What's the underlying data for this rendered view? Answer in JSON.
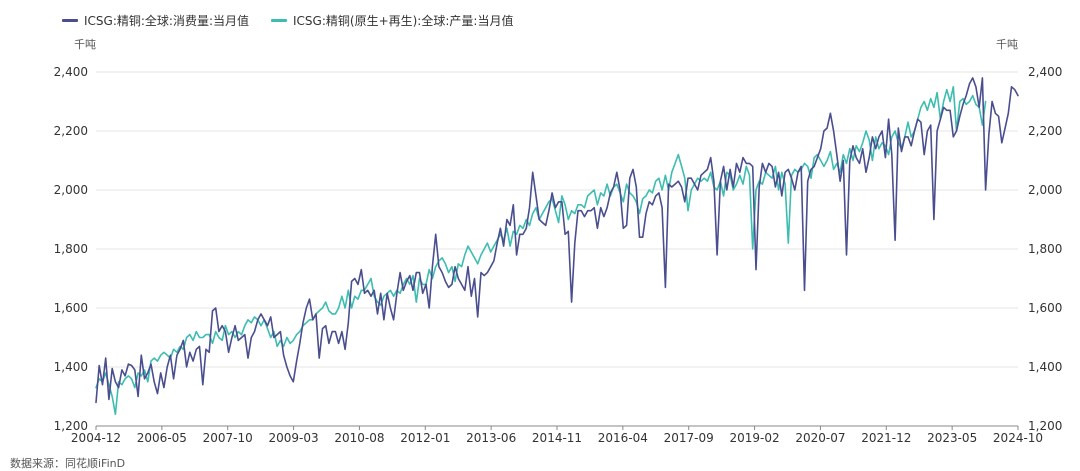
{
  "chart_data": {
    "type": "line",
    "legend_position": "top-left",
    "grid": true,
    "y_unit_left": "千吨",
    "y_unit_right": "千吨",
    "ylim": [
      1200,
      2400
    ],
    "yticks": [
      "1,200",
      "1,400",
      "1,600",
      "1,800",
      "2,000",
      "2,200",
      "2,400"
    ],
    "xlim": [
      "2004-12",
      "2024-10"
    ],
    "xticks": [
      "2004-12",
      "2006-05",
      "2007-10",
      "2009-03",
      "2010-08",
      "2012-01",
      "2013-06",
      "2014-11",
      "2016-04",
      "2017-09",
      "2019-02",
      "2020-07",
      "2021-12",
      "2023-05",
      "2024-10"
    ],
    "series": [
      {
        "name": "ICSG:精铜:全球:消费量:当月值",
        "color": "#4a4e8f",
        "values": [
          1280,
          1405,
          1340,
          1430,
          1290,
          1395,
          1350,
          1330,
          1390,
          1370,
          1410,
          1405,
          1390,
          1300,
          1440,
          1360,
          1380,
          1410,
          1350,
          1310,
          1380,
          1330,
          1400,
          1440,
          1360,
          1440,
          1460,
          1490,
          1400,
          1450,
          1420,
          1460,
          1470,
          1340,
          1460,
          1450,
          1590,
          1600,
          1520,
          1540,
          1520,
          1450,
          1500,
          1540,
          1490,
          1500,
          1510,
          1430,
          1500,
          1520,
          1560,
          1580,
          1560,
          1540,
          1570,
          1500,
          1510,
          1520,
          1440,
          1400,
          1370,
          1350,
          1420,
          1480,
          1550,
          1600,
          1630,
          1560,
          1580,
          1430,
          1530,
          1540,
          1480,
          1520,
          1520,
          1480,
          1520,
          1460,
          1550,
          1690,
          1700,
          1680,
          1730,
          1650,
          1660,
          1640,
          1660,
          1580,
          1650,
          1560,
          1650,
          1600,
          1560,
          1650,
          1720,
          1660,
          1690,
          1710,
          1660,
          1720,
          1720,
          1650,
          1680,
          1600,
          1740,
          1850,
          1740,
          1720,
          1690,
          1670,
          1680,
          1740,
          1700,
          1680,
          1660,
          1740,
          1640,
          1700,
          1570,
          1720,
          1710,
          1720,
          1740,
          1760,
          1820,
          1870,
          1810,
          1900,
          1880,
          1950,
          1780,
          1850,
          1850,
          1870,
          1940,
          2060,
          1980,
          1900,
          1890,
          1880,
          1930,
          1990,
          1940,
          1960,
          1960,
          1850,
          1860,
          1620,
          1820,
          1930,
          1930,
          1910,
          1930,
          1930,
          1940,
          1870,
          1940,
          1910,
          1940,
          1990,
          2010,
          2060,
          2000,
          1870,
          1880,
          2040,
          2070,
          2010,
          1840,
          1840,
          1920,
          1960,
          1950,
          1980,
          1990,
          1940,
          1670,
          2020,
          2010,
          2020,
          2030,
          2010,
          1960,
          2040,
          2040,
          2020,
          2000,
          2050,
          2060,
          2070,
          2110,
          2030,
          1780,
          2030,
          2080,
          2000,
          2070,
          2010,
          2090,
          2060,
          2110,
          2090,
          2090,
          2080,
          1730,
          2010,
          2090,
          2060,
          2090,
          2080,
          2010,
          2060,
          1980,
          2060,
          2070,
          2040,
          2000,
          2060,
          2080,
          1660,
          2030,
          2070,
          2080,
          2110,
          2140,
          2200,
          2210,
          2260,
          2200,
          2120,
          2030,
          2100,
          1780,
          2100,
          2150,
          2110,
          2090,
          2140,
          2060,
          2110,
          2180,
          2140,
          2180,
          2200,
          2110,
          2240,
          2120,
          1830,
          2210,
          2130,
          2180,
          2180,
          2150,
          2200,
          2240,
          2230,
          2120,
          2200,
          2220,
          1900,
          2200,
          2240,
          2280,
          2270,
          2270,
          2180,
          2200,
          2250,
          2290,
          2320,
          2360,
          2380,
          2350,
          2280,
          2380,
          2000,
          2190,
          2300,
          2260,
          2250,
          2160,
          2210,
          2260,
          2350,
          2340,
          2320
        ]
      },
      {
        "name": "ICSG:精铜(原生+再生):全球:产量:当月值",
        "color": "#3dbdb0",
        "values": [
          1330,
          1360,
          1350,
          1380,
          1340,
          1300,
          1240,
          1350,
          1340,
          1360,
          1370,
          1360,
          1330,
          1380,
          1370,
          1390,
          1350,
          1420,
          1430,
          1420,
          1440,
          1450,
          1440,
          1430,
          1460,
          1450,
          1470,
          1460,
          1500,
          1510,
          1490,
          1520,
          1500,
          1500,
          1510,
          1510,
          1480,
          1520,
          1500,
          1490,
          1540,
          1510,
          1520,
          1500,
          1520,
          1510,
          1540,
          1560,
          1550,
          1570,
          1560,
          1540,
          1560,
          1530,
          1500,
          1520,
          1470,
          1490,
          1470,
          1500,
          1480,
          1490,
          1510,
          1520,
          1540,
          1550,
          1560,
          1560,
          1580,
          1590,
          1600,
          1620,
          1590,
          1580,
          1580,
          1600,
          1640,
          1600,
          1660,
          1600,
          1640,
          1630,
          1660,
          1660,
          1680,
          1700,
          1640,
          1620,
          1610,
          1640,
          1650,
          1660,
          1640,
          1660,
          1650,
          1680,
          1700,
          1680,
          1710,
          1620,
          1700,
          1680,
          1680,
          1730,
          1700,
          1740,
          1760,
          1770,
          1750,
          1720,
          1740,
          1690,
          1750,
          1740,
          1780,
          1810,
          1790,
          1770,
          1750,
          1780,
          1800,
          1820,
          1790,
          1810,
          1830,
          1850,
          1830,
          1870,
          1810,
          1860,
          1850,
          1880,
          1870,
          1900,
          1880,
          1920,
          1940,
          1900,
          1920,
          1940,
          1960,
          1970,
          1930,
          1890,
          1980,
          1950,
          1900,
          1930,
          1920,
          1950,
          1950,
          1940,
          1980,
          1990,
          2000,
          1950,
          1990,
          1980,
          2020,
          1980,
          2010,
          2020,
          1990,
          1960,
          2020,
          1990,
          1980,
          1960,
          1920,
          1970,
          1980,
          2000,
          1990,
          2030,
          2040,
          2000,
          2050,
          2000,
          2060,
          2090,
          2120,
          2080,
          2040,
          1930,
          2000,
          2020,
          2040,
          2030,
          2040,
          2030,
          2060,
          2010,
          2000,
          2030,
          1980,
          2060,
          2050,
          2000,
          2020,
          2050,
          2020,
          2080,
          2050,
          1800,
          2000,
          2030,
          2020,
          2060,
          2050,
          2040,
          2080,
          2000,
          2060,
          2020,
          1820,
          2050,
          2070,
          2060,
          2070,
          2090,
          2080,
          2040,
          2110,
          2120,
          2100,
          2080,
          2100,
          2130,
          2070,
          2090,
          2060,
          2120,
          2090,
          2140,
          2100,
          2150,
          2130,
          2160,
          2200,
          2170,
          2100,
          2180,
          2140,
          2160,
          2150,
          2120,
          2180,
          2200,
          2160,
          2140,
          2180,
          2230,
          2180,
          2200,
          2240,
          2280,
          2300,
          2270,
          2310,
          2280,
          2330,
          2240,
          2300,
          2340,
          2300,
          2350,
          2200,
          2300,
          2310,
          2290,
          2300,
          2320,
          2290,
          2280,
          2220,
          2300
        ]
      }
    ]
  },
  "footer": {
    "source": "数据来源：同花顺iFinD"
  }
}
